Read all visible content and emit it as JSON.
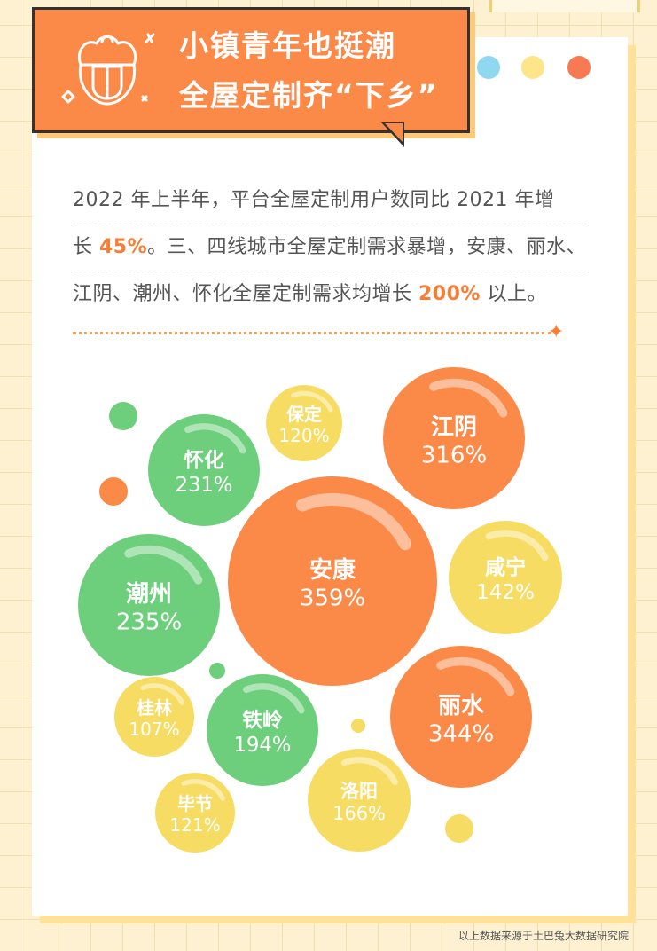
{
  "header": {
    "title_line1": "小镇青年也挺潮",
    "title_line2": "全屋定制齐“下乡”",
    "icon": "tuba-rabbit-mascot-icon"
  },
  "intro": {
    "line1": "2022 年上半年，平台全屋定制用户数同比 2021 年增",
    "line2_pre": "长 ",
    "line2_hl": "45%",
    "line2_post": "。三、四线城市全屋定制需求暴增，安康、丽水、",
    "line3_pre": "江阴、潮州、怀化全屋定制需求均增长 ",
    "line3_hl": "200%",
    "line3_post": " 以上。"
  },
  "chart_data": {
    "type": "bubble",
    "title": "",
    "series": [
      {
        "city": "安康",
        "value": 359,
        "label": "359%",
        "color": "#fb8a49"
      },
      {
        "city": "丽水",
        "value": 344,
        "label": "344%",
        "color": "#fb8a49"
      },
      {
        "city": "江阴",
        "value": 316,
        "label": "316%",
        "color": "#fb8a49"
      },
      {
        "city": "潮州",
        "value": 235,
        "label": "235%",
        "color": "#6dcf7b"
      },
      {
        "city": "怀化",
        "value": 231,
        "label": "231%",
        "color": "#6dcf7b"
      },
      {
        "city": "铁岭",
        "value": 194,
        "label": "194%",
        "color": "#6dcf7b"
      },
      {
        "city": "洛阳",
        "value": 166,
        "label": "166%",
        "color": "#f7dc63"
      },
      {
        "city": "咸宁",
        "value": 142,
        "label": "142%",
        "color": "#f7dc63"
      },
      {
        "city": "毕节",
        "value": 121,
        "label": "121%",
        "color": "#f7dc63"
      },
      {
        "city": "保定",
        "value": 120,
        "label": "120%",
        "color": "#f7dc63"
      },
      {
        "city": "桂林",
        "value": 107,
        "label": "107%",
        "color": "#f7dc63"
      }
    ]
  },
  "colors": {
    "orange": "#fb8a49",
    "green": "#6dcf7b",
    "yellow": "#f7dc63",
    "highlight": "#f97e35"
  },
  "footer": {
    "source": "以上数据来源于土巴兔大数据研究院"
  }
}
